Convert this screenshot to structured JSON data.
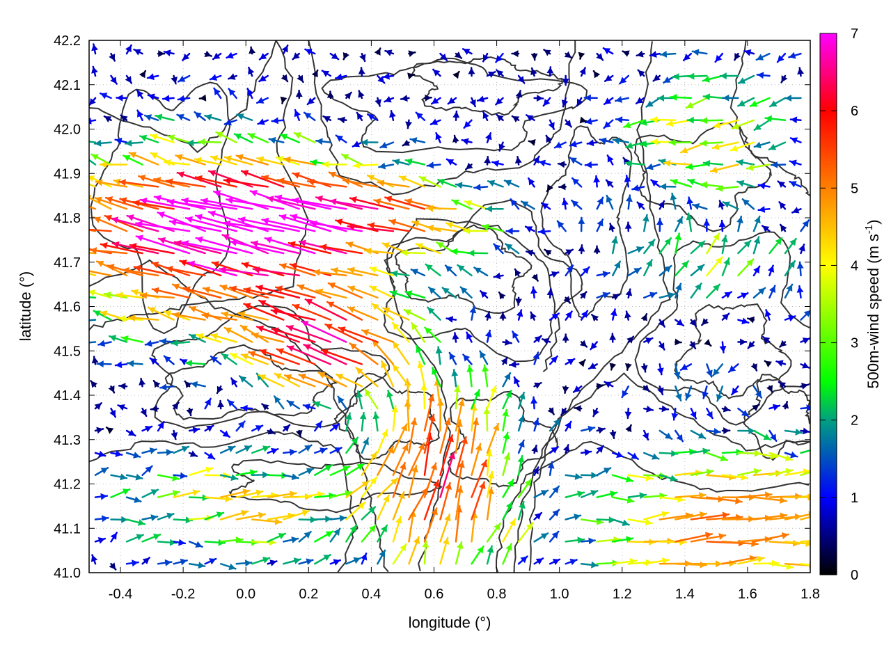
{
  "chart_data": {
    "type": "vector-field",
    "title": "",
    "xlabel": "longitude (°)",
    "ylabel": "latitude (°)",
    "colorbar_label": "500m-wind speed (m s⁻¹)",
    "colorbar_label_main": "500m-wind speed (m s",
    "colorbar_label_sup": "-1",
    "colorbar_label_close": ")",
    "xlim": [
      -0.5,
      1.8
    ],
    "ylim": [
      41.0,
      42.2
    ],
    "x_ticks": [
      "-0.4",
      "-0.2",
      "0.0",
      "0.2",
      "0.4",
      "0.6",
      "0.8",
      "1.0",
      "1.2",
      "1.4",
      "1.6",
      "1.8"
    ],
    "x_tick_values": [
      -0.4,
      -0.2,
      0.0,
      0.2,
      0.4,
      0.6,
      0.8,
      1.0,
      1.2,
      1.4,
      1.6,
      1.8
    ],
    "y_ticks": [
      "41.0",
      "41.1",
      "41.2",
      "41.3",
      "41.4",
      "41.5",
      "41.6",
      "41.7",
      "41.8",
      "41.9",
      "42.0",
      "42.1",
      "42.2"
    ],
    "y_tick_values": [
      41.0,
      41.1,
      41.2,
      41.3,
      41.4,
      41.5,
      41.6,
      41.7,
      41.8,
      41.9,
      42.0,
      42.1,
      42.2
    ],
    "colorbar_ticks": [
      "0",
      "1",
      "2",
      "3",
      "4",
      "5",
      "6",
      "7"
    ],
    "colorbar_range": [
      0,
      7
    ],
    "colormap": [
      "#000000",
      "#0000ff",
      "#00ff00",
      "#ffff00",
      "#ff8000",
      "#ff0000",
      "#ff00ff"
    ],
    "grid": "dotted",
    "contour_color": "#333333",
    "wind_regimes": [
      {
        "region": "north-west",
        "direction": "west",
        "speed_range": [
          4.5,
          7
        ]
      },
      {
        "region": "north-centre",
        "direction": "variable",
        "speed_range": [
          0.5,
          2
        ]
      },
      {
        "region": "centre-south",
        "direction": "north",
        "speed_range": [
          4.5,
          7
        ]
      },
      {
        "region": "south-east",
        "direction": "east",
        "speed_range": [
          3.5,
          5
        ]
      },
      {
        "region": "east",
        "direction": "north-east",
        "speed_range": [
          3,
          5
        ]
      }
    ]
  }
}
